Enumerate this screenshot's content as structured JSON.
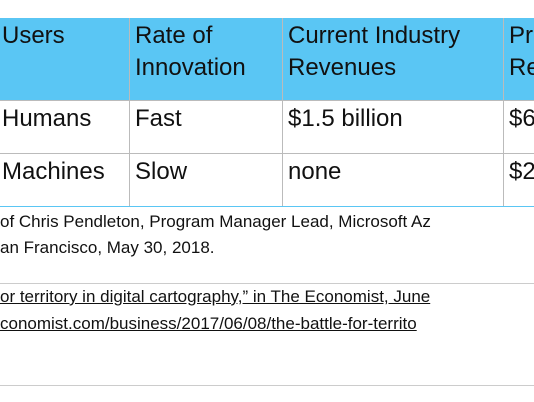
{
  "table": {
    "header": [
      [
        "Users"
      ],
      [
        "Rate of",
        "Innovation"
      ],
      [
        "Current Industry",
        "Revenues"
      ],
      [
        "Pr",
        "Re"
      ]
    ],
    "rows": [
      [
        "Humans",
        "Fast",
        "$1.5 billion",
        "$6"
      ],
      [
        "Machines",
        "Slow",
        "none",
        "$2"
      ]
    ]
  },
  "notes": [
    [
      "of Chris Pendleton, Program Manager Lead, Microsoft Az",
      "an Francisco, May 30, 2018."
    ]
  ],
  "links": [
    "or territory in digital cartography,” in The Economist, June",
    "conomist.com/business/2017/06/08/the-battle-for-territo"
  ]
}
